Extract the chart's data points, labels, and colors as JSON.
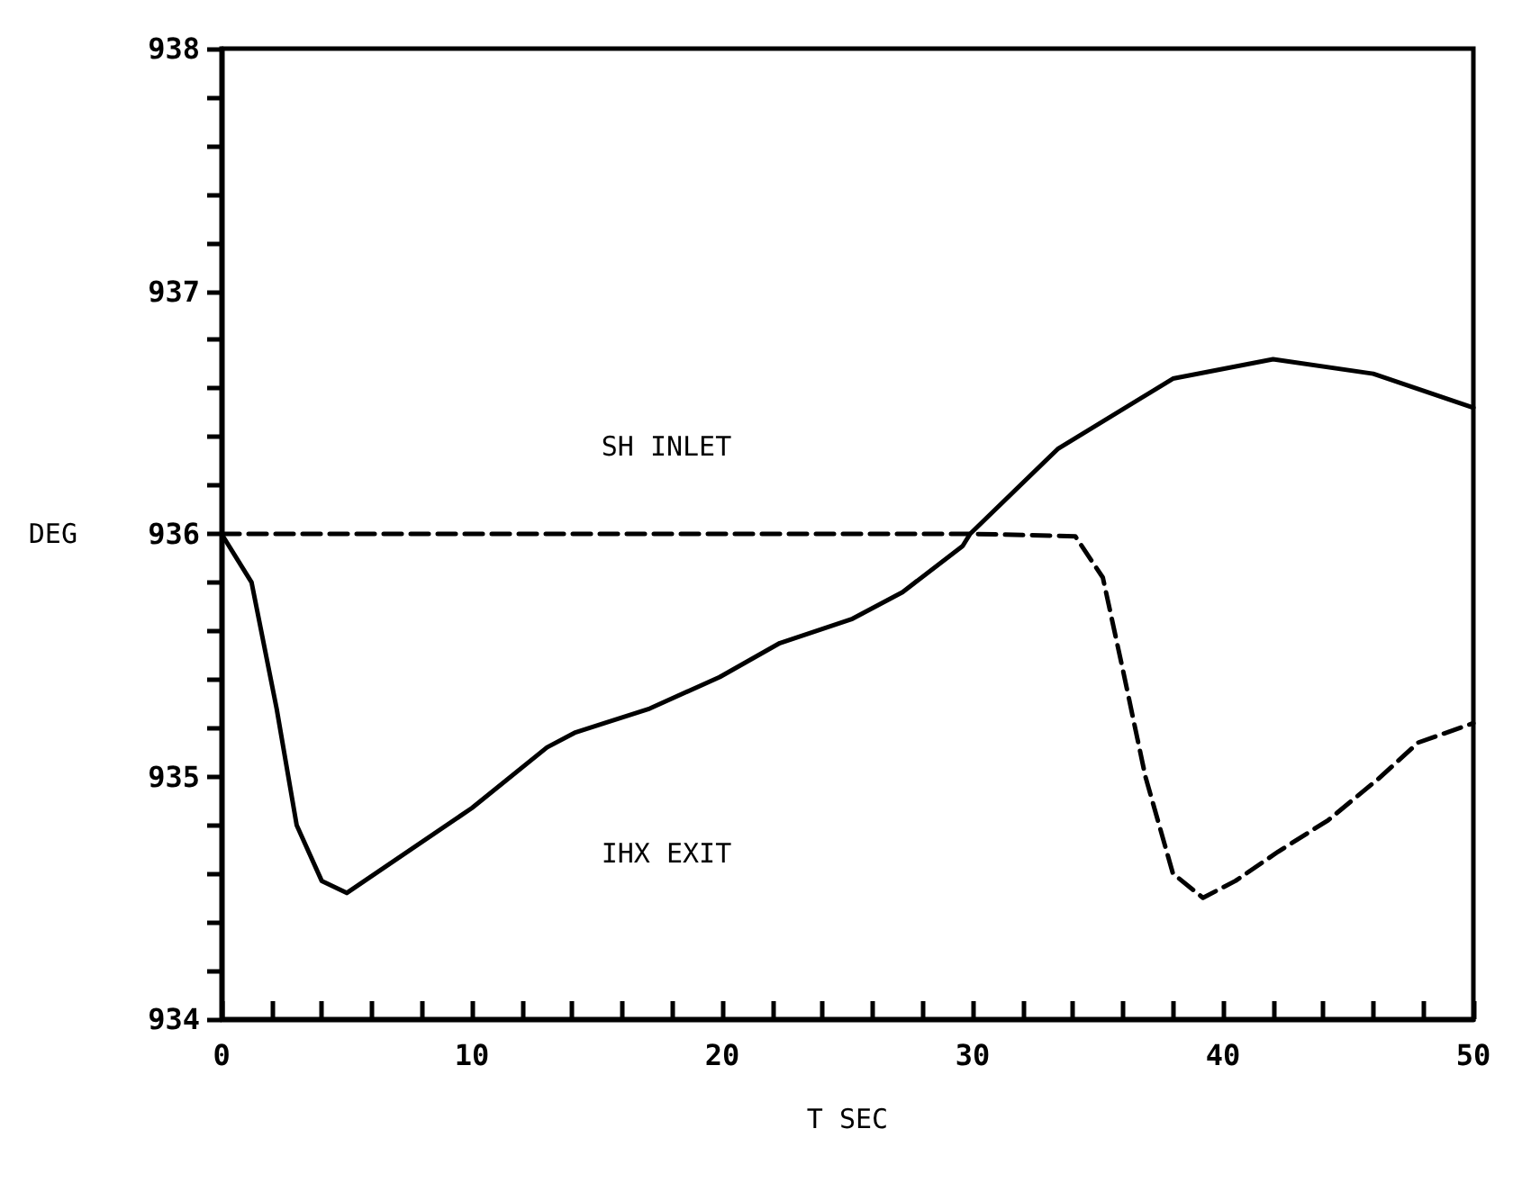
{
  "chart_data": {
    "type": "line",
    "xlabel": "T SEC",
    "ylabel": "DEG",
    "xlim": [
      0,
      50
    ],
    "ylim": [
      934,
      938
    ],
    "xticks": [
      0,
      {
        "value": 2,
        "label": null
      },
      {
        "value": 4,
        "label": null
      },
      {
        "value": 6,
        "label": null
      },
      {
        "value": 8,
        "label": null
      },
      10,
      {
        "value": 12,
        "label": null
      },
      {
        "value": 14,
        "label": null
      },
      {
        "value": 16,
        "label": null
      },
      {
        "value": 18,
        "label": null
      },
      20,
      {
        "value": 22,
        "label": null
      },
      {
        "value": 24,
        "label": null
      },
      {
        "value": 26,
        "label": null
      },
      {
        "value": 28,
        "label": null
      },
      30,
      {
        "value": 32,
        "label": null
      },
      {
        "value": 34,
        "label": null
      },
      {
        "value": 36,
        "label": null
      },
      {
        "value": 38,
        "label": null
      },
      40,
      {
        "value": 42,
        "label": null
      },
      {
        "value": 44,
        "label": null
      },
      {
        "value": 46,
        "label": null
      },
      {
        "value": 48,
        "label": null
      },
      50
    ],
    "yticks": [
      934,
      {
        "value": 934.2,
        "label": null
      },
      {
        "value": 934.4,
        "label": null
      },
      {
        "value": 934.6,
        "label": null
      },
      {
        "value": 934.8,
        "label": null
      },
      935,
      {
        "value": 935.2,
        "label": null
      },
      {
        "value": 935.4,
        "label": null
      },
      {
        "value": 935.6,
        "label": null
      },
      {
        "value": 935.8,
        "label": null
      },
      936,
      {
        "value": 936.2,
        "label": null
      },
      {
        "value": 936.4,
        "label": null
      },
      {
        "value": 936.6,
        "label": null
      },
      {
        "value": 936.8,
        "label": null
      },
      937,
      {
        "value": 937.2,
        "label": null
      },
      {
        "value": 937.4,
        "label": null
      },
      {
        "value": 937.6,
        "label": null
      },
      {
        "value": 937.8,
        "label": null
      },
      938
    ],
    "grid": false,
    "marker": "none",
    "series": [
      {
        "color": "#000000",
        "line_style": "solid",
        "x": [
          0,
          1.2,
          2.2,
          3,
          4,
          5,
          10,
          13,
          14.1,
          15.3,
          17.1,
          19.9,
          22.3,
          25.2,
          27.2,
          29.6,
          29.9,
          33.4,
          38,
          42,
          46,
          50
        ],
        "values": [
          936.0,
          935.8,
          935.28,
          934.8,
          934.57,
          934.52,
          934.87,
          935.12,
          935.18,
          935.22,
          935.28,
          935.41,
          935.55,
          935.65,
          935.76,
          935.95,
          936.0,
          936.35,
          936.64,
          936.72,
          936.66,
          936.52
        ]
      },
      {
        "color": "#000000",
        "line_style": "dashed",
        "x": [
          0,
          10,
          20,
          30,
          34.1,
          35.2,
          36,
          36.9,
          38,
          39.2,
          40.5,
          42.2,
          44.2,
          46.2,
          47.8,
          50
        ],
        "values": [
          936.0,
          936.0,
          936.0,
          936.0,
          935.99,
          935.82,
          935.44,
          935.0,
          934.6,
          934.5,
          934.57,
          934.69,
          934.82,
          934.99,
          935.14,
          935.22
        ]
      }
    ],
    "annotations": [
      "SH INLET",
      "IHX EXIT"
    ]
  }
}
